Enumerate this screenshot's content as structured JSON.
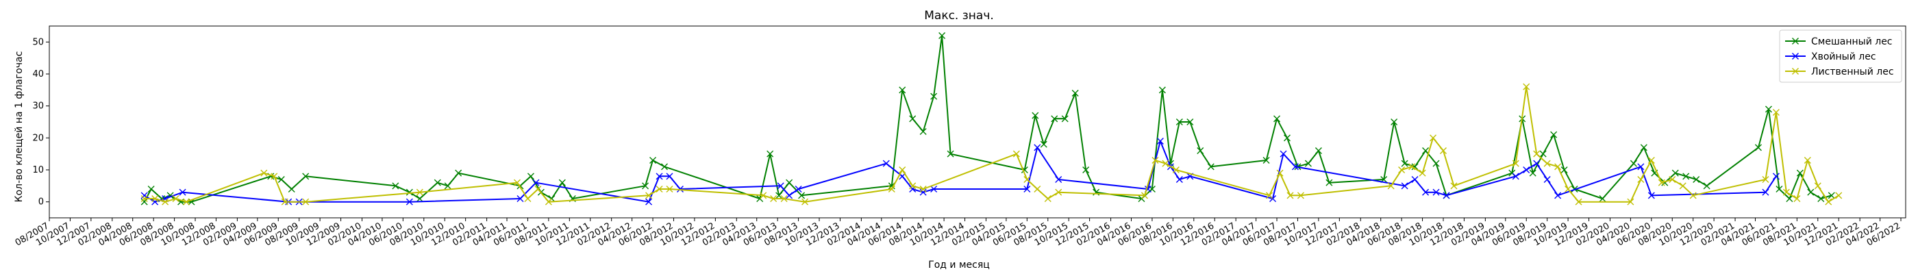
{
  "chart_data": {
    "type": "line",
    "title": "Макс. знач.",
    "xlabel": "Год и месяц",
    "ylabel": "Кол-во клещей на 1 флагочас",
    "ylim": [
      -5,
      55
    ],
    "yticks": [
      0,
      10,
      20,
      30,
      40,
      50
    ],
    "xlim": [
      "2007-08-01",
      "2022-06-15"
    ],
    "xtick_labels": [
      "08/2007",
      "10/2007",
      "12/2007",
      "02/2008",
      "04/2008",
      "06/2008",
      "08/2008",
      "10/2008",
      "12/2008",
      "02/2009",
      "04/2009",
      "06/2009",
      "08/2009",
      "10/2009",
      "12/2009",
      "02/2010",
      "04/2010",
      "06/2010",
      "08/2010",
      "10/2010",
      "12/2010",
      "02/2011",
      "04/2011",
      "06/2011",
      "08/2011",
      "10/2011",
      "12/2011",
      "02/2012",
      "04/2012",
      "06/2012",
      "08/2012",
      "10/2012",
      "12/2012",
      "02/2013",
      "04/2013",
      "06/2013",
      "08/2013",
      "10/2013",
      "12/2013",
      "02/2014",
      "04/2014",
      "06/2014",
      "08/2014",
      "10/2014",
      "12/2014",
      "02/2015",
      "04/2015",
      "06/2015",
      "08/2015",
      "10/2015",
      "12/2015",
      "02/2016",
      "04/2016",
      "06/2016",
      "08/2016",
      "10/2016",
      "12/2016",
      "02/2017",
      "04/2017",
      "06/2017",
      "08/2017",
      "10/2017",
      "12/2017",
      "02/2018",
      "04/2018",
      "06/2018",
      "08/2018",
      "10/2018",
      "12/2018",
      "02/2019",
      "04/2019",
      "06/2019",
      "08/2019",
      "10/2019",
      "12/2019",
      "02/2020",
      "04/2020",
      "06/2020",
      "08/2020",
      "10/2020",
      "12/2020",
      "02/2021",
      "04/2021",
      "06/2021",
      "08/2021",
      "10/2021",
      "12/2021",
      "02/2022",
      "04/2022",
      "06/2022"
    ],
    "legend_position": "top-right",
    "grid": false,
    "series": [
      {
        "name": "Смешанный лес",
        "color": "#008000",
        "marker": "x",
        "points": [
          [
            "2008-05-05",
            0
          ],
          [
            "2008-05-25",
            4
          ],
          [
            "2008-06-25",
            1
          ],
          [
            "2008-07-20",
            2
          ],
          [
            "2008-08-20",
            0
          ],
          [
            "2008-09-20",
            0
          ],
          [
            "2009-05-10",
            8
          ],
          [
            "2009-06-10",
            7
          ],
          [
            "2009-07-10",
            4
          ],
          [
            "2009-08-20",
            8
          ],
          [
            "2010-05-10",
            5
          ],
          [
            "2010-06-20",
            3
          ],
          [
            "2010-07-20",
            1
          ],
          [
            "2010-09-10",
            6
          ],
          [
            "2010-10-10",
            5
          ],
          [
            "2010-11-10",
            9
          ],
          [
            "2011-05-10",
            5
          ],
          [
            "2011-06-10",
            8
          ],
          [
            "2011-07-10",
            3
          ],
          [
            "2011-08-10",
            1
          ],
          [
            "2011-09-10",
            6
          ],
          [
            "2011-10-10",
            1
          ],
          [
            "2012-05-10",
            5
          ],
          [
            "2012-06-01",
            13
          ],
          [
            "2012-07-05",
            11
          ],
          [
            "2013-04-10",
            1
          ],
          [
            "2013-05-10",
            15
          ],
          [
            "2013-06-05",
            2
          ],
          [
            "2013-07-05",
            6
          ],
          [
            "2013-08-10",
            2
          ],
          [
            "2014-05-01",
            5
          ],
          [
            "2014-06-01",
            35
          ],
          [
            "2014-07-01",
            26
          ],
          [
            "2014-08-01",
            22
          ],
          [
            "2014-09-01",
            33
          ],
          [
            "2014-09-25",
            52
          ],
          [
            "2014-10-20",
            15
          ],
          [
            "2015-05-25",
            10
          ],
          [
            "2015-06-25",
            27
          ],
          [
            "2015-07-20",
            18
          ],
          [
            "2015-08-20",
            26
          ],
          [
            "2015-09-20",
            26
          ],
          [
            "2015-10-20",
            34
          ],
          [
            "2015-11-20",
            10
          ],
          [
            "2015-12-20",
            3
          ],
          [
            "2016-05-01",
            1
          ],
          [
            "2016-06-01",
            4
          ],
          [
            "2016-07-01",
            35
          ],
          [
            "2016-07-25",
            12
          ],
          [
            "2016-08-20",
            25
          ],
          [
            "2016-09-20",
            25
          ],
          [
            "2016-10-20",
            16
          ],
          [
            "2016-11-20",
            11
          ],
          [
            "2017-05-01",
            13
          ],
          [
            "2017-06-01",
            26
          ],
          [
            "2017-07-01",
            20
          ],
          [
            "2017-08-01",
            11
          ],
          [
            "2017-09-01",
            12
          ],
          [
            "2017-10-01",
            16
          ],
          [
            "2017-11-01",
            6
          ],
          [
            "2018-04-10",
            7
          ],
          [
            "2018-05-10",
            25
          ],
          [
            "2018-06-10",
            12
          ],
          [
            "2018-07-10",
            11
          ],
          [
            "2018-08-10",
            16
          ],
          [
            "2018-09-10",
            12
          ],
          [
            "2018-10-10",
            2
          ],
          [
            "2019-04-20",
            9
          ],
          [
            "2019-05-20",
            26
          ],
          [
            "2019-06-20",
            9
          ],
          [
            "2019-07-20",
            15
          ],
          [
            "2019-08-20",
            21
          ],
          [
            "2019-09-20",
            10
          ],
          [
            "2019-10-20",
            4
          ],
          [
            "2020-01-10",
            1
          ],
          [
            "2020-04-10",
            12
          ],
          [
            "2020-05-10",
            17
          ],
          [
            "2020-06-10",
            9
          ],
          [
            "2020-07-10",
            6
          ],
          [
            "2020-08-10",
            9
          ],
          [
            "2020-09-10",
            8
          ],
          [
            "2020-10-10",
            7
          ],
          [
            "2020-11-10",
            5
          ],
          [
            "2021-04-10",
            17
          ],
          [
            "2021-05-10",
            29
          ],
          [
            "2021-06-10",
            4
          ],
          [
            "2021-07-10",
            1
          ],
          [
            "2021-08-10",
            9
          ],
          [
            "2021-09-10",
            3
          ],
          [
            "2021-10-10",
            1
          ],
          [
            "2021-11-10",
            2
          ]
        ]
      },
      {
        "name": "Хвойный лес",
        "color": "#0000ff",
        "marker": "x",
        "points": [
          [
            "2008-05-05",
            2
          ],
          [
            "2008-06-05",
            0
          ],
          [
            "2008-07-05",
            1
          ],
          [
            "2008-08-25",
            3
          ],
          [
            "2009-07-01",
            0
          ],
          [
            "2009-08-01",
            0
          ],
          [
            "2010-06-20",
            0
          ],
          [
            "2011-05-10",
            1
          ],
          [
            "2011-06-25",
            6
          ],
          [
            "2012-05-20",
            0
          ],
          [
            "2012-06-20",
            8
          ],
          [
            "2012-07-20",
            8
          ],
          [
            "2012-08-20",
            4
          ],
          [
            "2013-06-10",
            5
          ],
          [
            "2013-07-05",
            2
          ],
          [
            "2013-08-01",
            4
          ],
          [
            "2014-04-15",
            12
          ],
          [
            "2014-06-01",
            8
          ],
          [
            "2014-07-01",
            4
          ],
          [
            "2014-08-01",
            3
          ],
          [
            "2014-09-01",
            4
          ],
          [
            "2015-06-01",
            4
          ],
          [
            "2015-07-01",
            17
          ],
          [
            "2015-09-01",
            7
          ],
          [
            "2016-05-20",
            4
          ],
          [
            "2016-06-25",
            19
          ],
          [
            "2016-07-25",
            11
          ],
          [
            "2016-08-20",
            7
          ],
          [
            "2016-09-20",
            8
          ],
          [
            "2017-05-20",
            1
          ],
          [
            "2017-06-20",
            15
          ],
          [
            "2017-07-25",
            11
          ],
          [
            "2018-06-10",
            5
          ],
          [
            "2018-07-10",
            7
          ],
          [
            "2018-08-10",
            3
          ],
          [
            "2018-09-10",
            3
          ],
          [
            "2018-10-10",
            2
          ],
          [
            "2019-05-01",
            8
          ],
          [
            "2019-06-01",
            10
          ],
          [
            "2019-07-01",
            12
          ],
          [
            "2019-08-01",
            7
          ],
          [
            "2019-09-01",
            2
          ],
          [
            "2020-05-01",
            11
          ],
          [
            "2020-06-01",
            2
          ],
          [
            "2021-05-01",
            3
          ],
          [
            "2021-06-01",
            8
          ]
        ]
      },
      {
        "name": "Лиственный лес",
        "color": "#bfbf00",
        "marker": "x",
        "points": [
          [
            "2008-05-05",
            1
          ],
          [
            "2008-06-05",
            1
          ],
          [
            "2008-07-05",
            0
          ],
          [
            "2008-08-05",
            1
          ],
          [
            "2008-09-05",
            0
          ],
          [
            "2009-04-20",
            9
          ],
          [
            "2009-05-20",
            8
          ],
          [
            "2009-06-20",
            0
          ],
          [
            "2009-08-20",
            0
          ],
          [
            "2010-07-20",
            3
          ],
          [
            "2011-05-01",
            6
          ],
          [
            "2011-06-01",
            1
          ],
          [
            "2011-07-01",
            4
          ],
          [
            "2011-08-01",
            0
          ],
          [
            "2012-05-20",
            2
          ],
          [
            "2012-06-20",
            4
          ],
          [
            "2012-07-20",
            4
          ],
          [
            "2013-04-20",
            2
          ],
          [
            "2013-05-20",
            1
          ],
          [
            "2013-06-20",
            1
          ],
          [
            "2013-08-20",
            0
          ],
          [
            "2014-05-01",
            4
          ],
          [
            "2014-06-01",
            10
          ],
          [
            "2014-07-01",
            5
          ],
          [
            "2014-08-01",
            4
          ],
          [
            "2015-05-01",
            15
          ],
          [
            "2015-06-01",
            7
          ],
          [
            "2015-07-01",
            4
          ],
          [
            "2015-08-01",
            1
          ],
          [
            "2015-09-01",
            3
          ],
          [
            "2016-05-10",
            2
          ],
          [
            "2016-06-10",
            13
          ],
          [
            "2016-07-10",
            12
          ],
          [
            "2016-08-10",
            10
          ],
          [
            "2017-05-10",
            2
          ],
          [
            "2017-06-10",
            9
          ],
          [
            "2017-07-10",
            2
          ],
          [
            "2017-08-10",
            2
          ],
          [
            "2018-05-01",
            5
          ],
          [
            "2018-06-01",
            10
          ],
          [
            "2018-07-01",
            11
          ],
          [
            "2018-08-01",
            9
          ],
          [
            "2018-09-01",
            20
          ],
          [
            "2018-10-01",
            16
          ],
          [
            "2018-11-01",
            5
          ],
          [
            "2019-05-01",
            12
          ],
          [
            "2019-06-01",
            36
          ],
          [
            "2019-07-01",
            15
          ],
          [
            "2019-08-01",
            12
          ],
          [
            "2019-09-01",
            11
          ],
          [
            "2019-10-01",
            4
          ],
          [
            "2019-11-01",
            0
          ],
          [
            "2020-04-01",
            0
          ],
          [
            "2020-05-01",
            7
          ],
          [
            "2020-06-01",
            13
          ],
          [
            "2020-07-01",
            6
          ],
          [
            "2020-08-01",
            7
          ],
          [
            "2020-09-01",
            5
          ],
          [
            "2020-10-01",
            2
          ],
          [
            "2021-05-01",
            7
          ],
          [
            "2021-06-01",
            28
          ],
          [
            "2021-07-01",
            3
          ],
          [
            "2021-08-01",
            1
          ],
          [
            "2021-09-01",
            13
          ],
          [
            "2021-10-01",
            5
          ],
          [
            "2021-11-01",
            0
          ],
          [
            "2021-12-01",
            2
          ]
        ]
      }
    ]
  }
}
